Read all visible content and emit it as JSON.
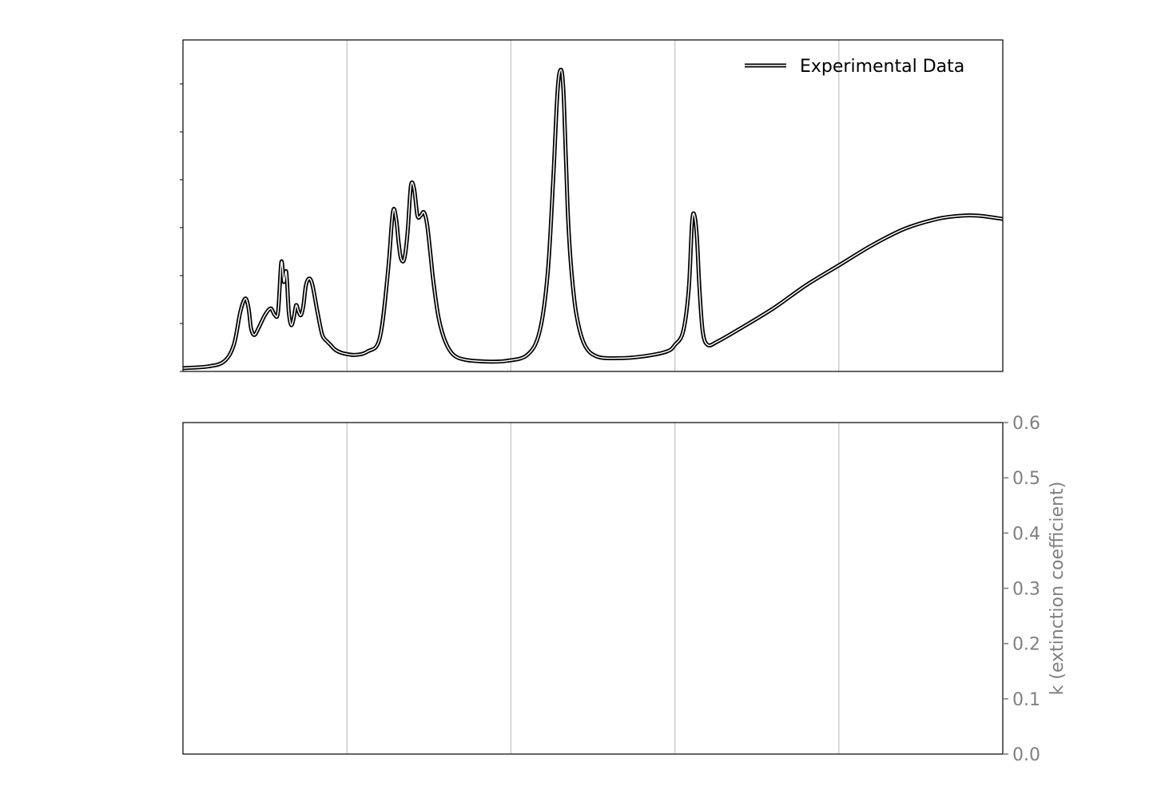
{
  "chart_data": [
    {
      "type": "line",
      "panel": "top",
      "title": "",
      "xlabel": "",
      "ylabel": "",
      "xlim": [
        0,
        1
      ],
      "ylim": [
        0,
        1
      ],
      "grid": "vertical",
      "legend_placement": "top-right",
      "series": [
        {
          "name": "Experimental Data",
          "x": [
            0.0,
            0.03,
            0.05,
            0.062,
            0.07,
            0.076,
            0.08,
            0.083,
            0.087,
            0.092,
            0.1,
            0.107,
            0.112,
            0.116,
            0.12,
            0.123,
            0.126,
            0.129,
            0.132,
            0.135,
            0.138,
            0.141,
            0.144,
            0.147,
            0.15,
            0.154,
            0.158,
            0.164,
            0.17,
            0.176,
            0.18,
            0.186,
            0.195,
            0.21,
            0.225,
            0.24,
            0.25,
            0.256,
            0.26,
            0.263,
            0.266,
            0.27,
            0.274,
            0.278,
            0.282,
            0.286,
            0.29,
            0.294,
            0.298,
            0.302,
            0.306,
            0.312,
            0.32,
            0.33,
            0.345,
            0.37,
            0.395,
            0.42,
            0.435,
            0.445,
            0.452,
            0.457,
            0.461,
            0.464,
            0.467,
            0.47,
            0.474,
            0.48,
            0.49,
            0.505,
            0.53,
            0.56,
            0.59,
            0.6,
            0.61,
            0.617,
            0.621,
            0.624,
            0.627,
            0.63,
            0.634,
            0.64,
            0.652,
            0.68,
            0.72,
            0.76,
            0.8,
            0.84,
            0.88,
            0.92,
            0.95,
            0.97,
            1.0
          ],
          "y": [
            0.01,
            0.015,
            0.03,
            0.08,
            0.18,
            0.22,
            0.19,
            0.13,
            0.11,
            0.13,
            0.17,
            0.19,
            0.17,
            0.18,
            0.33,
            0.27,
            0.3,
            0.18,
            0.14,
            0.16,
            0.2,
            0.18,
            0.17,
            0.2,
            0.26,
            0.28,
            0.26,
            0.18,
            0.11,
            0.09,
            0.08,
            0.065,
            0.055,
            0.05,
            0.06,
            0.1,
            0.3,
            0.48,
            0.46,
            0.39,
            0.34,
            0.34,
            0.42,
            0.56,
            0.55,
            0.47,
            0.47,
            0.48,
            0.44,
            0.35,
            0.26,
            0.16,
            0.09,
            0.05,
            0.035,
            0.03,
            0.032,
            0.05,
            0.12,
            0.3,
            0.6,
            0.85,
            0.91,
            0.85,
            0.65,
            0.45,
            0.3,
            0.17,
            0.08,
            0.045,
            0.04,
            0.045,
            0.06,
            0.08,
            0.12,
            0.25,
            0.45,
            0.47,
            0.4,
            0.25,
            0.12,
            0.08,
            0.09,
            0.13,
            0.19,
            0.26,
            0.32,
            0.38,
            0.43,
            0.46,
            0.47,
            0.47,
            0.46
          ]
        }
      ]
    },
    {
      "type": "line",
      "panel": "bottom",
      "title": "",
      "xlabel": "",
      "ylabel": "k (extinction coefficient)",
      "xlim": [
        0,
        1
      ],
      "ylim": [
        0.0,
        0.6
      ],
      "yticks": [
        "0.0",
        "0.1",
        "0.2",
        "0.3",
        "0.4",
        "0.5",
        "0.6"
      ],
      "y_axis_side": "right",
      "grid": "vertical",
      "series": []
    }
  ],
  "colors": {
    "line": "#000000",
    "grid": "#c8c8c8",
    "tick_text": "#7f7f7f",
    "frame": "#000000"
  }
}
